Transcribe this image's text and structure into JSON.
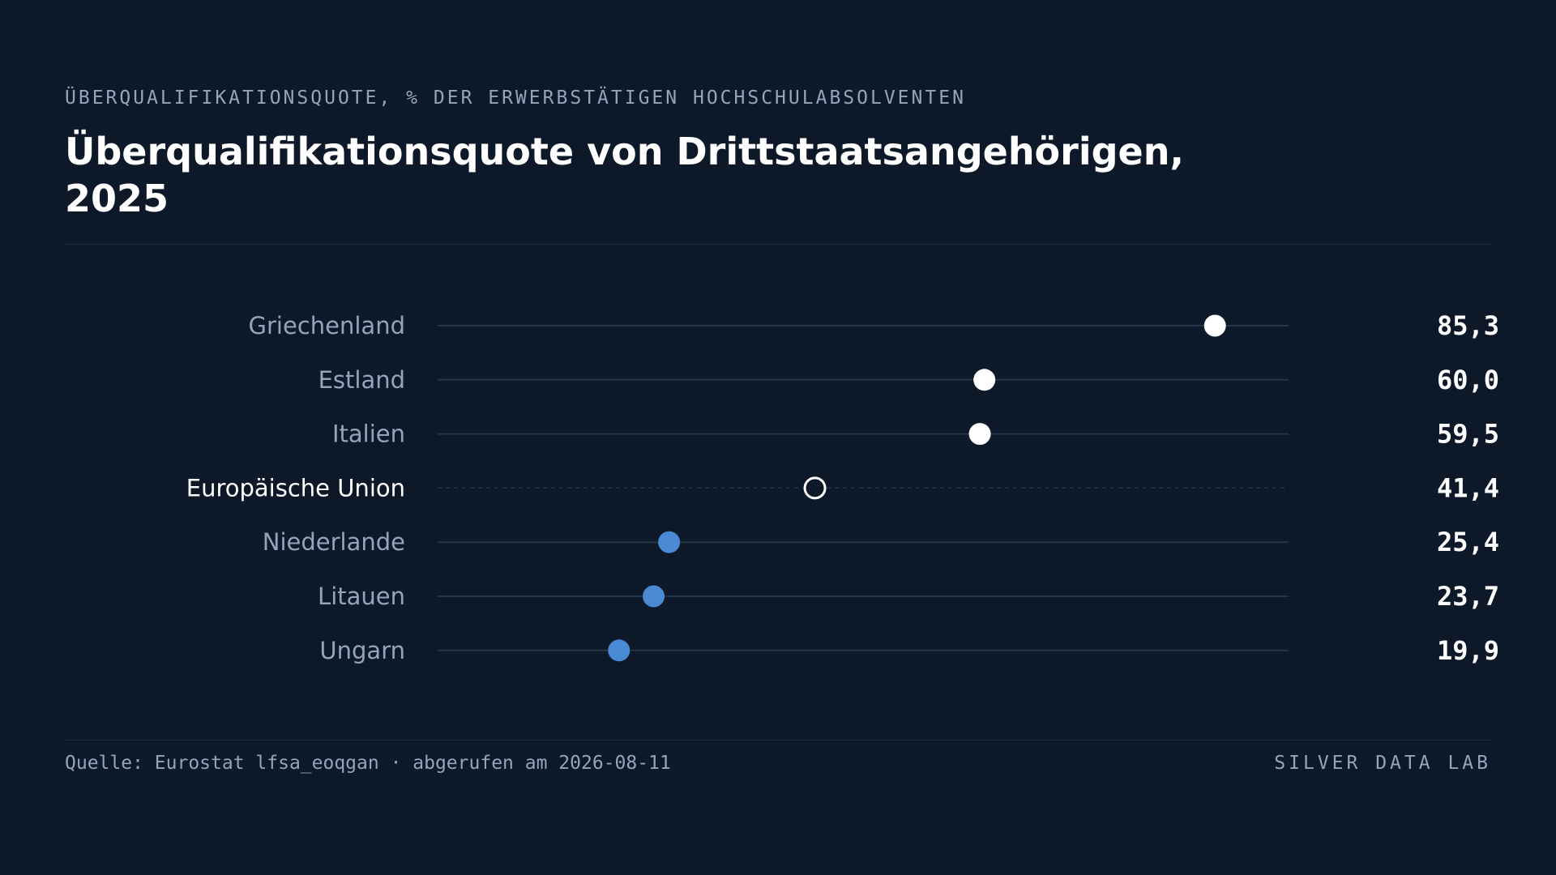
{
  "header": {
    "subtitle": "ÜBERQUALIFIKATIONSQUOTE, % DER ERWERBSTÄTIGEN HOCHSCHULABSOLVENTEN",
    "title": "Überqualifikationsquote von Drittstaatsangehörigen, 2025"
  },
  "footer": {
    "source": "Quelle: Eurostat lfsa_eoqgan · abgerufen am 2026-08-11",
    "brand": "SILVER DATA LAB"
  },
  "colors": {
    "background": "#0d1929",
    "high": "#ffffff",
    "low": "#4a8ad4",
    "reference": "#ffffff",
    "label": "#93a4bd",
    "label_highlight": "#ffffff",
    "track": "#22364b"
  },
  "chart_data": {
    "type": "dot",
    "title": "Überqualifikationsquote von Drittstaatsangehörigen, 2025",
    "xlim": [
      0,
      100
    ],
    "grid": false,
    "categories": [
      "Griechenland",
      "Estland",
      "Italien",
      "Europäische Union",
      "Niederlande",
      "Litauen",
      "Ungarn"
    ],
    "values": [
      85.3,
      60.0,
      59.5,
      41.4,
      25.4,
      23.7,
      19.9
    ],
    "value_labels": [
      "85,3",
      "60,0",
      "59,5",
      "41,4",
      "25,4",
      "23,7",
      "19,9"
    ],
    "groups": [
      "high",
      "high",
      "high",
      "reference",
      "low",
      "low",
      "low"
    ],
    "reference_category": "Europäische Union"
  }
}
